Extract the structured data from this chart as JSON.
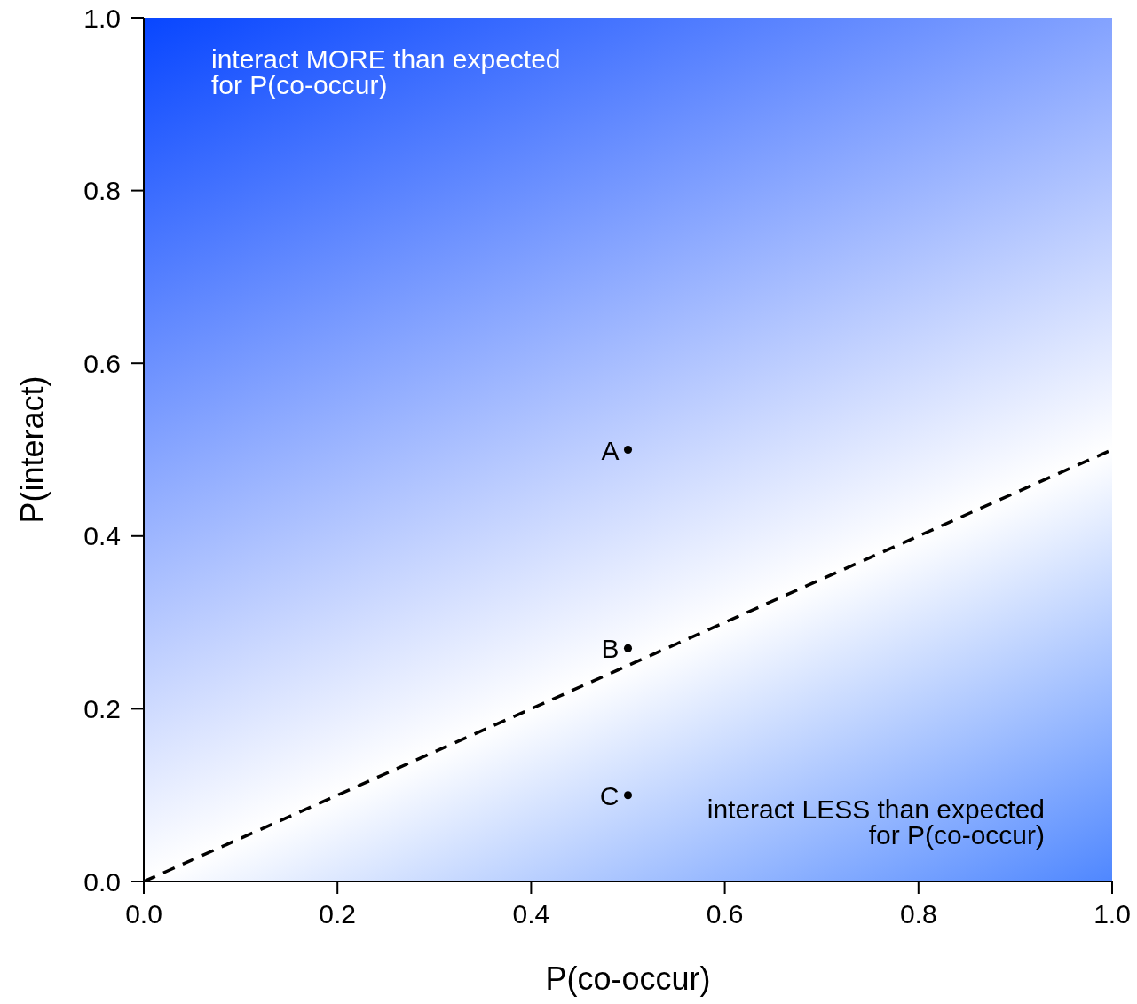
{
  "chart_data": {
    "type": "scatter",
    "xlabel": "P(co-occur)",
    "ylabel": "P(interact)",
    "xlim": [
      0,
      1
    ],
    "ylim": [
      0,
      1
    ],
    "xticks": [
      {
        "value": 0,
        "label": "0.0"
      },
      0.2,
      0.4,
      0.6,
      0.8,
      {
        "value": 1,
        "label": "1.0"
      }
    ],
    "yticks": [
      {
        "value": 0,
        "label": "0.0"
      },
      0.2,
      0.4,
      0.6,
      0.8,
      {
        "value": 1,
        "label": "1.0"
      }
    ],
    "grid": false,
    "marker": "circle",
    "series": [
      {
        "type": "scatter",
        "color": "#000000",
        "x": [
          0.5,
          0.5,
          0.5
        ],
        "values": [
          0.5,
          0.27,
          0.1
        ],
        "value_labels": [
          "A",
          "B",
          "C"
        ]
      },
      {
        "type": "line",
        "color": "#000000",
        "x": [
          0,
          1
        ],
        "values": [
          0,
          0.5
        ],
        "line_style": "dashed",
        "marker": "none"
      }
    ],
    "annotations": [
      "interact MORE than expected\nfor P(co-occur)",
      "interact LESS than expected\nfor P(co-occur)"
    ]
  }
}
